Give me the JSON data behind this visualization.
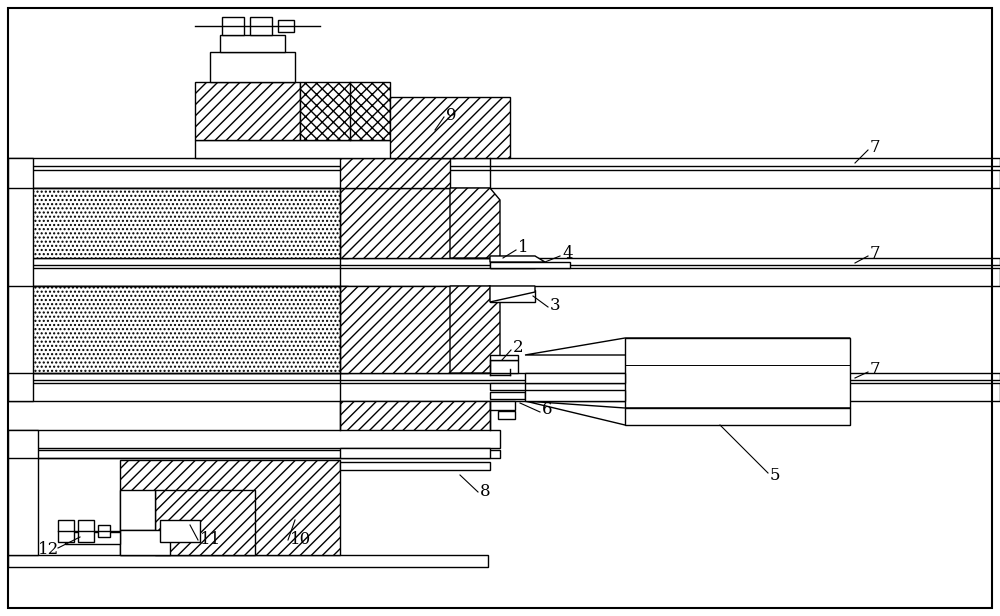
{
  "bg_color": "#ffffff",
  "fig_width": 10.0,
  "fig_height": 6.16,
  "dpi": 100,
  "border": [
    8,
    8,
    984,
    600
  ]
}
